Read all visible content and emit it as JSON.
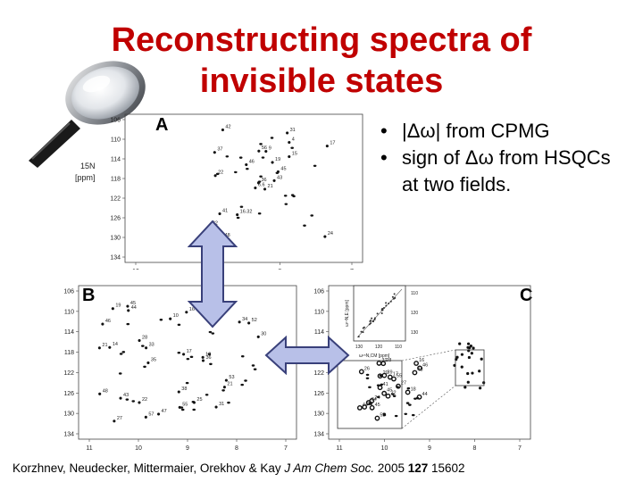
{
  "slide": {
    "title_line1": "Reconstructing spectra of",
    "title_line2": "invisible states",
    "panel_labels": {
      "a": "A",
      "b": "B",
      "c": "C"
    },
    "bullets": [
      {
        "symbol": "•",
        "text": "|Δω| from CPMG"
      },
      {
        "symbol": "•",
        "text": "sign of Δω from HSQCs at two fields."
      }
    ],
    "citation": {
      "authors": "Korzhnev, Neudecker, Mittermaier, Orekhov & Kay ",
      "journal": "J Am Chem Soc.",
      "year": " 2005 ",
      "volume": "127",
      "pages": " 15602"
    },
    "colors": {
      "title": "#c00000",
      "arrow_fill": "#b8c0e8",
      "arrow_stroke": "#39407a"
    },
    "icons": [
      "magnifier-icon",
      "double-arrow-vertical-icon",
      "double-arrow-horizontal-icon"
    ]
  },
  "spectrum_a": {
    "y_axis_title": [
      "15N",
      "[ppm]"
    ],
    "y_ticks": [
      "106",
      "110",
      "114",
      "118",
      "122",
      "126",
      "130",
      "134"
    ],
    "x_ticks": [
      "10",
      "9",
      "8",
      "7"
    ],
    "peak_labels": [
      "21",
      "37",
      "36",
      "32",
      "45",
      "16.32",
      "31",
      "9",
      "4",
      "43",
      "42",
      "24",
      "22",
      "17",
      "6.6",
      "15",
      "48",
      "56",
      "19",
      "41",
      "46",
      "38"
    ]
  },
  "spectrum_b": {
    "y_ticks": [
      "106",
      "110",
      "114",
      "118",
      "122",
      "126",
      "130",
      "134"
    ],
    "x_ticks": [
      "11",
      "10",
      "9",
      "8",
      "7"
    ],
    "peak_labels": [
      "57",
      "21",
      "18",
      "27",
      "55",
      "36",
      "43",
      "30",
      "46",
      "21",
      "31",
      "22",
      "44",
      "19",
      "25",
      "52",
      "16",
      "35",
      "14",
      "28",
      "34",
      "45",
      "41",
      "10",
      "17",
      "48",
      "38",
      "47",
      "53",
      "33"
    ]
  },
  "spectrum_c": {
    "y_ticks": [
      "106",
      "110",
      "114",
      "118",
      "122",
      "126",
      "130",
      "134"
    ],
    "x_ticks": [
      "11",
      "10",
      "9",
      "8",
      "7"
    ],
    "inset_y_ticks": [
      "110",
      "120",
      "130"
    ],
    "inset_x_ticks": [
      "130",
      "120",
      "110"
    ],
    "inset_axis_y": "ω¹⁵N,E [ppm]",
    "inset_axis_x": "ω¹⁵N,CM [ppm]",
    "peak_labels": [
      "34",
      "45",
      "52",
      "27",
      "48",
      "41",
      "44",
      "26",
      "17",
      "45",
      "31",
      "44",
      "22",
      "46",
      "39",
      "28",
      "23",
      "16",
      "55",
      "20",
      "18",
      "24"
    ]
  }
}
